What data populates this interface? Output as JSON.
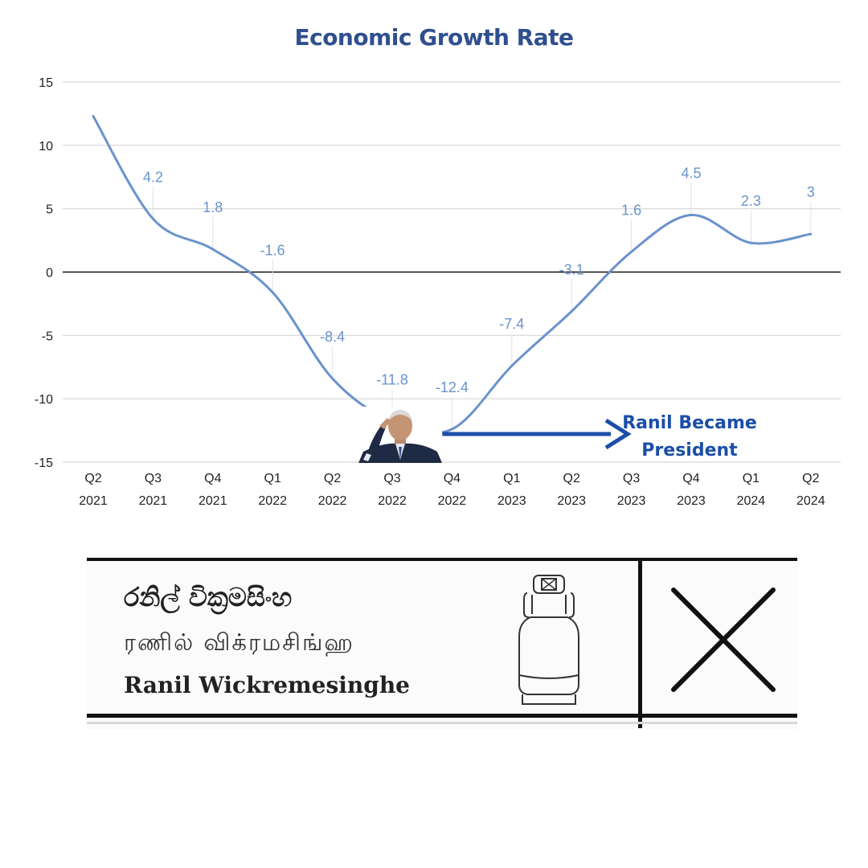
{
  "chart_data": {
    "type": "line",
    "title": "Economic Growth Rate",
    "categories": [
      [
        "Q2",
        "2021"
      ],
      [
        "Q3",
        "2021"
      ],
      [
        "Q4",
        "2021"
      ],
      [
        "Q1",
        "2022"
      ],
      [
        "Q2",
        "2022"
      ],
      [
        "Q3",
        "2022"
      ],
      [
        "Q4",
        "2022"
      ],
      [
        "Q1",
        "2023"
      ],
      [
        "Q2",
        "2023"
      ],
      [
        "Q3",
        "2023"
      ],
      [
        "Q4",
        "2023"
      ],
      [
        "Q1",
        "2024"
      ],
      [
        "Q2",
        "2024"
      ]
    ],
    "values": [
      12.3,
      4.2,
      1.8,
      -1.6,
      -8.4,
      -11.8,
      -12.4,
      -7.4,
      -3.1,
      1.6,
      4.5,
      2.3,
      3
    ],
    "data_labels": [
      "",
      "4.2",
      "1.8",
      "-1.6",
      "-8.4",
      "-11.8",
      "-12.4",
      "-7.4",
      "-3.1",
      "1.6",
      "4.5",
      "2.3",
      "3"
    ],
    "yticks": [
      "15",
      "10",
      "5",
      "0",
      "-5",
      "-10",
      "-15"
    ],
    "ylim": [
      -15,
      15
    ],
    "grid": true,
    "line_color": "#6a93cc",
    "label_color": "#6a93cc",
    "annotation": {
      "lines": [
        "Ranil Became",
        "President"
      ],
      "arrow_from_category": 6,
      "arrow_color": "#1b4ea8"
    }
  },
  "ballot": {
    "name_sinhala": "රනිල් වික්‍රමසිංහ",
    "name_tamil": "ரணில் விக்ரமசிங்ஹ",
    "name_english": "Ranil Wickremesinghe",
    "symbol_icon": "gas-cylinder-icon",
    "mark_icon": "cross-mark-icon"
  }
}
